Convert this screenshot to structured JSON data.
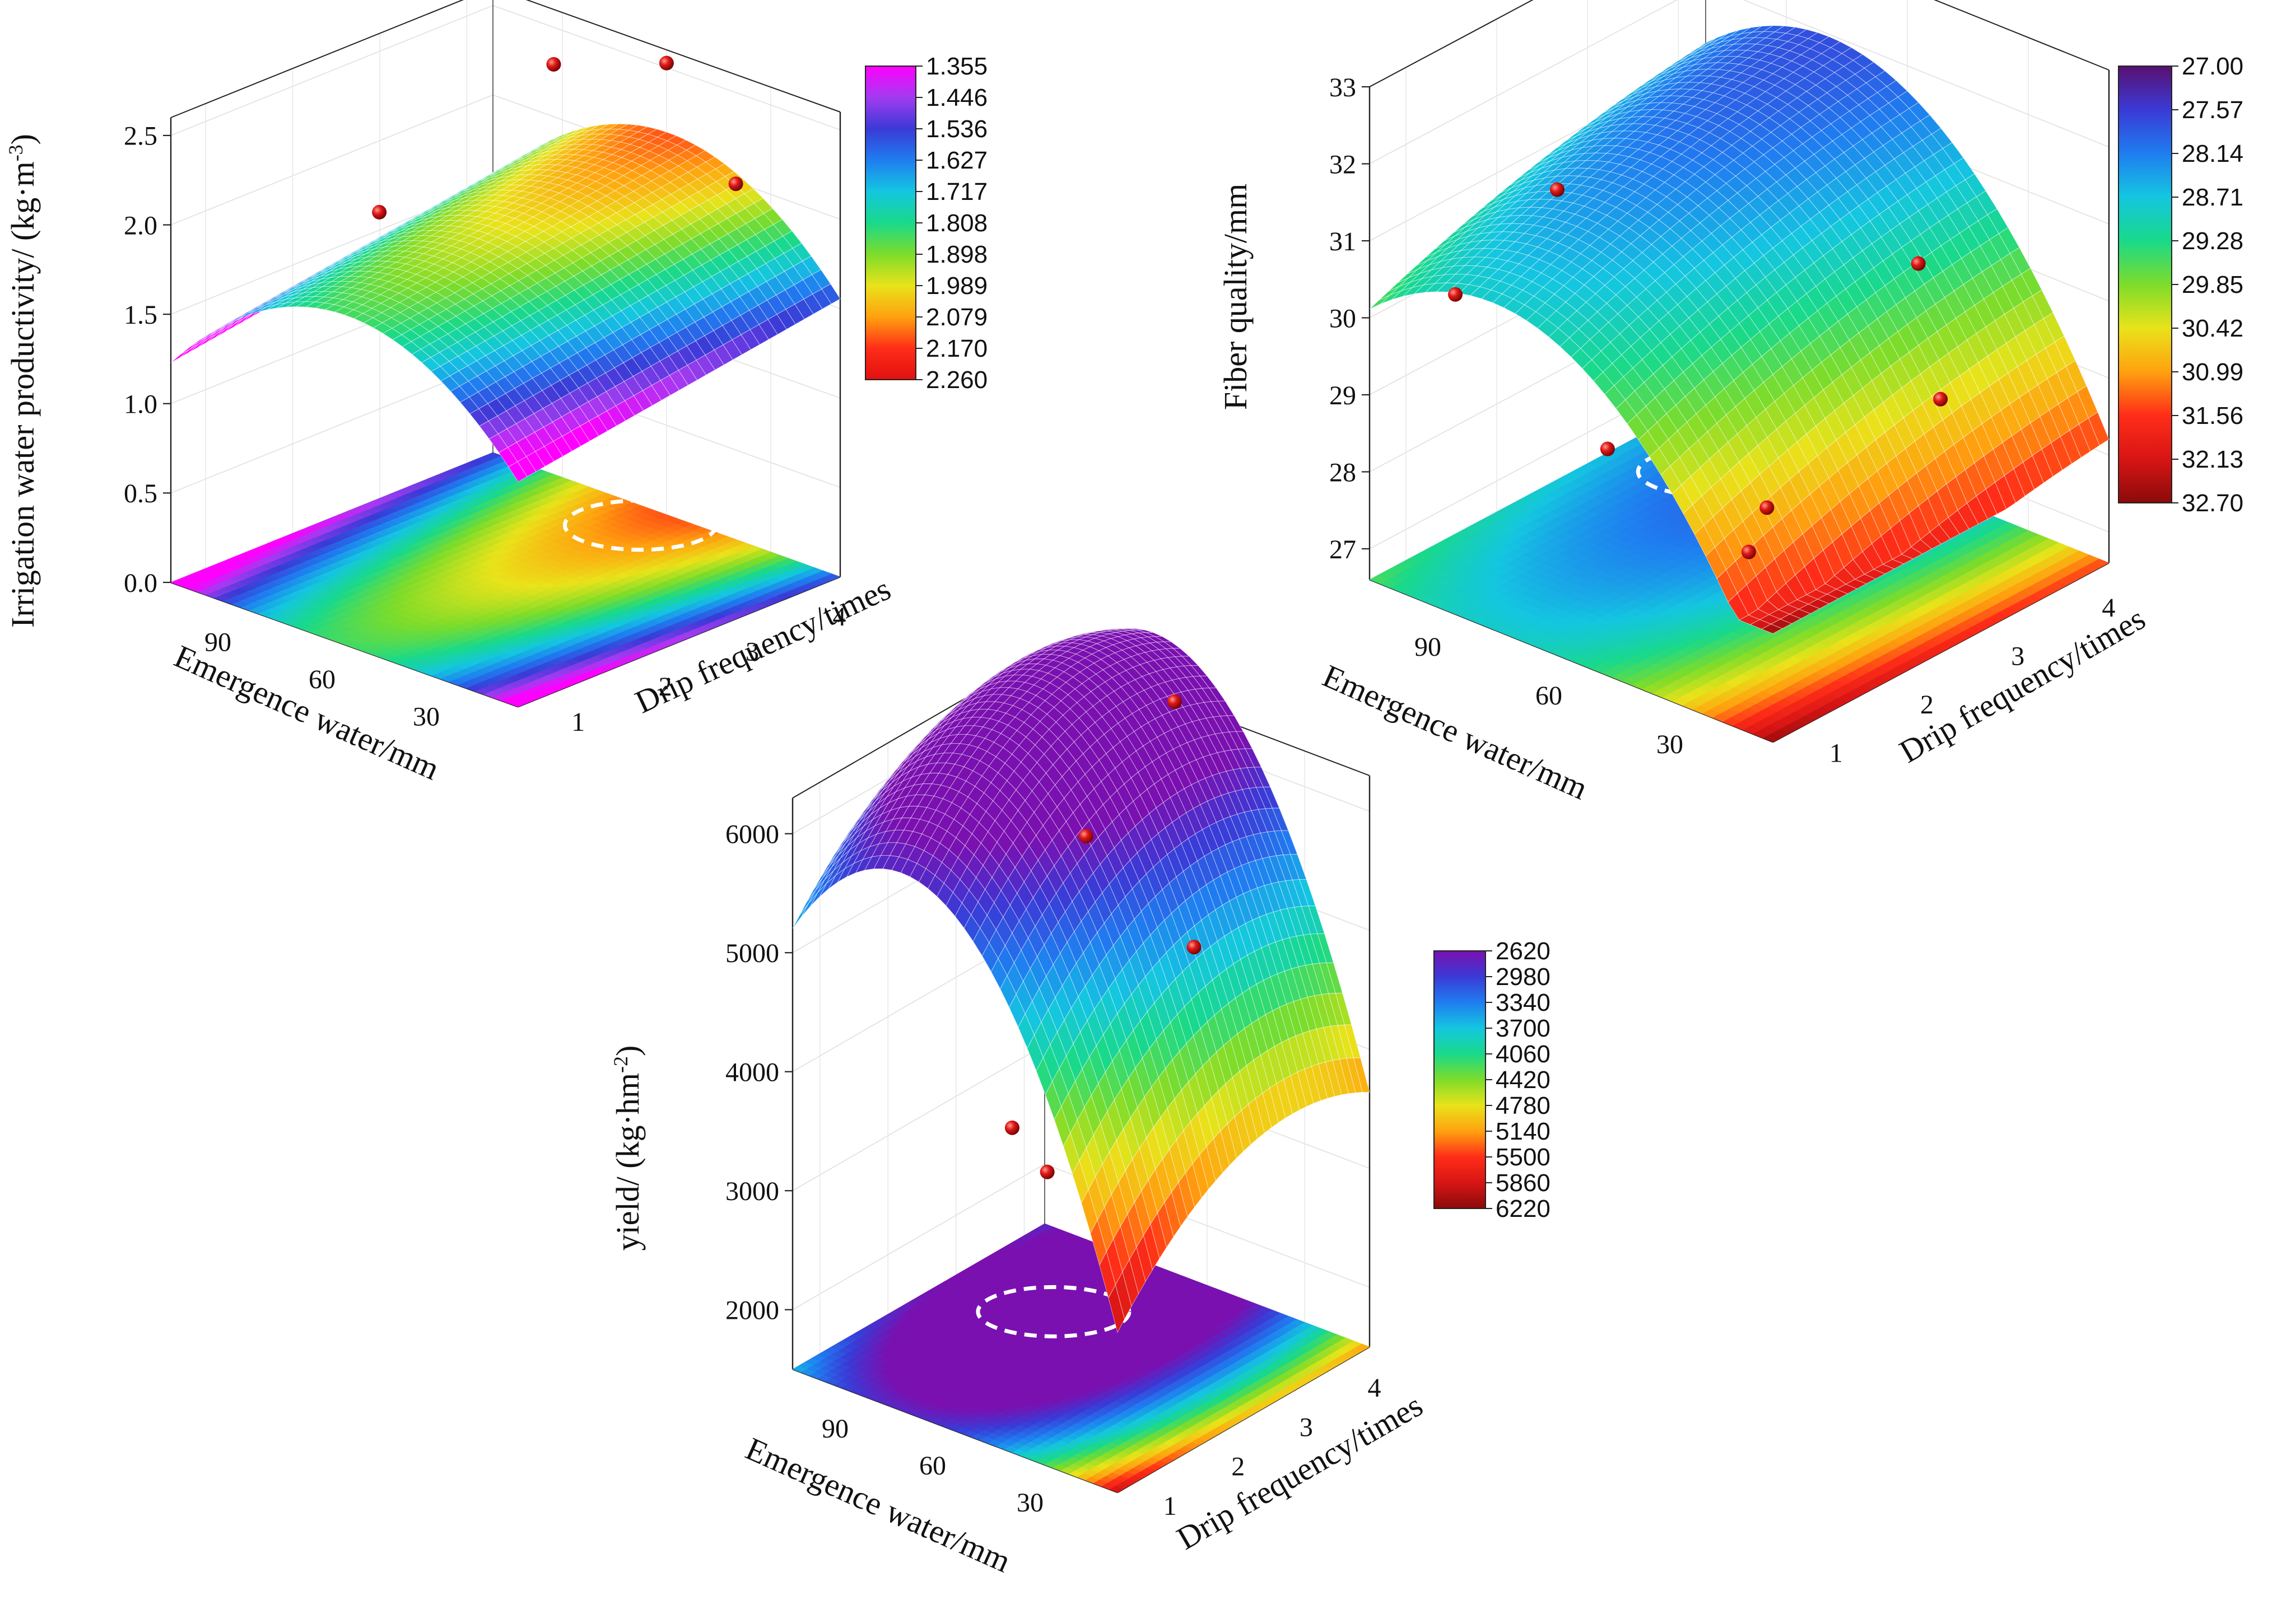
{
  "chart_data": [
    {
      "id": "irrigation",
      "type": "surface3d",
      "zlabel": "Irrigation water productivity/ (kg·m",
      "zlabel_sup": "-3",
      "zlabel_end": ")",
      "xlabel": "Emergence water/mm",
      "ylabel": "Drip frequency/times",
      "x_ticks": [
        "30",
        "60",
        "90"
      ],
      "x_tick_values": [
        30,
        60,
        90
      ],
      "xlim": [
        10,
        110
      ],
      "y_ticks": [
        "1",
        "2",
        "3",
        "4"
      ],
      "y_tick_values": [
        1,
        2,
        3,
        4
      ],
      "ylim": [
        0.6,
        4.3
      ],
      "z_ticks": [
        "0.0",
        "0.5",
        "1.0",
        "1.5",
        "2.0",
        "2.5"
      ],
      "z_tick_values": [
        0,
        0.5,
        1.0,
        1.5,
        2.0,
        2.5
      ],
      "zlim": [
        0,
        2.6
      ],
      "colorbar": {
        "labels": [
          "1.355",
          "1.446",
          "1.536",
          "1.627",
          "1.717",
          "1.808",
          "1.898",
          "1.989",
          "2.079",
          "2.170",
          "2.260"
        ],
        "reversed": false,
        "colors": [
          "#ff00ff",
          "#a23bf0",
          "#3a3ad6",
          "#1f7df0",
          "#14c6e0",
          "#19d98a",
          "#7ddc2a",
          "#e9e31a",
          "#ffa10f",
          "#ff2d18",
          "#e01010"
        ]
      },
      "surface": {
        "a": 0.95,
        "b": 0.0285,
        "c": -0.00024,
        "d": 0.08,
        "e": 0.0,
        "f": 0.0
      },
      "points": [
        {
          "x": 60,
          "y": 1,
          "z": 2.34
        },
        {
          "x": 15,
          "y": 3.3,
          "z": 2.36
        },
        {
          "x": 55,
          "y": 4.1,
          "z": 2.6
        },
        {
          "x": 90,
          "y": 4.2,
          "z": 2.33
        }
      ],
      "optimum": {
        "x": 60,
        "y": 4.0
      }
    },
    {
      "id": "fiber",
      "type": "surface3d",
      "zlabel": "Fiber quality/mm",
      "zlabel_sup": "",
      "zlabel_end": "",
      "xlabel": "Emergence water/mm",
      "ylabel": "Drip frequency/times",
      "x_ticks": [
        "30",
        "60",
        "90"
      ],
      "x_tick_values": [
        30,
        60,
        90
      ],
      "xlim": [
        10,
        110
      ],
      "y_ticks": [
        "1",
        "2",
        "3",
        "4"
      ],
      "y_tick_values": [
        1,
        2,
        3,
        4
      ],
      "ylim": [
        0.6,
        4.3
      ],
      "z_ticks": [
        "27",
        "28",
        "29",
        "30",
        "31",
        "32",
        "33"
      ],
      "z_tick_values": [
        27,
        28,
        29,
        30,
        31,
        32,
        33
      ],
      "zlim": [
        26.6,
        33
      ],
      "colorbar": {
        "labels": [
          "27.00",
          "27.57",
          "28.14",
          "28.71",
          "29.28",
          "29.85",
          "30.42",
          "30.99",
          "31.56",
          "32.13",
          "32.70"
        ],
        "reversed": true,
        "colors": [
          "#5a1070",
          "#3a3ad6",
          "#1f7df0",
          "#14c6e0",
          "#19d98a",
          "#7ddc2a",
          "#e9e31a",
          "#ffa10f",
          "#ff2d18",
          "#d81515",
          "#8a0a0a"
        ]
      },
      "surface": {
        "a": 25.6,
        "b": 0.124,
        "c": -0.00078,
        "d": 0.55,
        "e": -0.05,
        "f": 0.0
      },
      "points": [
        {
          "x": 25,
          "y": 1.2,
          "z": 28.95
        },
        {
          "x": 25,
          "y": 1.0,
          "z": 28.5
        },
        {
          "x": 18,
          "y": 2.8,
          "z": 29.5
        },
        {
          "x": 60,
          "y": 1.0,
          "z": 29.1
        },
        {
          "x": 100,
          "y": 1.1,
          "z": 30.2
        },
        {
          "x": 95,
          "y": 2.0,
          "z": 31.1
        },
        {
          "x": 95,
          "y": 4.3,
          "z": 32.3
        },
        {
          "x": 55,
          "y": 4.2,
          "z": 29.6
        }
      ],
      "optimum": {
        "x": 90,
        "y": 3.5
      }
    },
    {
      "id": "yield",
      "type": "surface3d",
      "zlabel": "yield/ (kg·hm",
      "zlabel_sup": "-2",
      "zlabel_end": ")",
      "xlabel": "Emergence water/mm",
      "ylabel": "Drip frequency/times",
      "x_ticks": [
        "30",
        "60",
        "90"
      ],
      "x_tick_values": [
        30,
        60,
        90
      ],
      "xlim": [
        10,
        110
      ],
      "y_ticks": [
        "1",
        "2",
        "3",
        "4"
      ],
      "y_tick_values": [
        1,
        2,
        3,
        4
      ],
      "ylim": [
        0.6,
        4.3
      ],
      "z_ticks": [
        "2000",
        "3000",
        "4000",
        "5000",
        "6000"
      ],
      "z_tick_values": [
        2000,
        3000,
        4000,
        5000,
        6000
      ],
      "zlim": [
        1500,
        6300
      ],
      "colorbar": {
        "labels": [
          "2620",
          "2980",
          "3340",
          "3700",
          "4060",
          "4420",
          "4780",
          "5140",
          "5500",
          "5860",
          "6220"
        ],
        "reversed": true,
        "colors": [
          "#7a10b0",
          "#3a3ad6",
          "#1f7df0",
          "#14c6e0",
          "#19d98a",
          "#7ddc2a",
          "#e9e31a",
          "#ffa10f",
          "#ff2d18",
          "#d81515",
          "#8a0a0a"
        ]
      },
      "surface": {
        "a": 1300,
        "b": 110,
        "c": -0.72,
        "d": 950,
        "e": -150,
        "f": 0.0
      },
      "points": [
        {
          "x": 20,
          "y": 2.2,
          "z": 5450
        },
        {
          "x": 40,
          "y": 1.0,
          "z": 3750
        },
        {
          "x": 55,
          "y": 1.2,
          "z": 3900
        },
        {
          "x": 70,
          "y": 4.3,
          "z": 6300
        },
        {
          "x": 70,
          "y": 3.0,
          "z": 5600
        }
      ],
      "optimum": {
        "x": 80,
        "y": 3.0
      }
    }
  ]
}
